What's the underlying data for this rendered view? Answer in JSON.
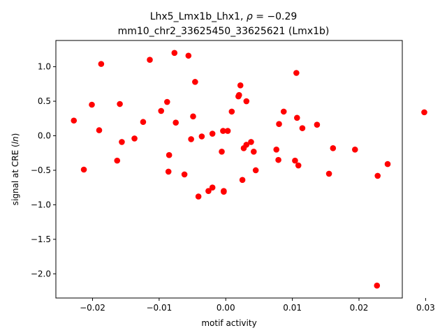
{
  "chart_data": {
    "type": "scatter",
    "title_line1_main": "Lhx5_Lmx1b_Lhx1, ",
    "title_line1_rho": "ρ",
    "title_line1_value": " = −0.29",
    "title_line2": "mm10_chr2_33625450_33625621 (Lmx1b)",
    "xlabel": "motif activity",
    "ylabel_prefix": "signal at CRE (",
    "ylabel_italic": "ln",
    "ylabel_suffix": ")",
    "xlim": [
      -0.0255,
      0.0265
    ],
    "ylim": [
      -2.35,
      1.38
    ],
    "xticks": [
      -0.02,
      -0.01,
      0.0,
      0.01,
      0.02,
      0.03
    ],
    "xtick_labels": [
      "−0.02",
      "−0.01",
      "0.00",
      "0.01",
      "0.02",
      "0.03"
    ],
    "yticks": [
      1.0,
      0.5,
      0.0,
      -0.5,
      -1.0,
      -1.5,
      -2.0
    ],
    "ytick_labels": [
      "1.0",
      "0.5",
      "0.0",
      "−0.5",
      "−1.0",
      "−1.5",
      "−2.0"
    ],
    "marker_color": "#ff0000",
    "points": [
      [
        -0.0228,
        0.22
      ],
      [
        -0.0213,
        -0.49
      ],
      [
        -0.0201,
        0.45
      ],
      [
        -0.019,
        0.08
      ],
      [
        -0.0187,
        1.04
      ],
      [
        -0.0163,
        -0.36
      ],
      [
        -0.0159,
        0.46
      ],
      [
        -0.0156,
        -0.09
      ],
      [
        -0.0137,
        -0.04
      ],
      [
        -0.0124,
        0.2
      ],
      [
        -0.0114,
        1.1
      ],
      [
        -0.0097,
        0.36
      ],
      [
        -0.0088,
        0.49
      ],
      [
        -0.0086,
        -0.52
      ],
      [
        -0.0085,
        -0.28
      ],
      [
        -0.0075,
        0.19
      ],
      [
        -0.0077,
        1.2
      ],
      [
        -0.0062,
        -0.56
      ],
      [
        -0.0056,
        1.16
      ],
      [
        -0.0052,
        -0.05
      ],
      [
        -0.0049,
        0.28
      ],
      [
        -0.0046,
        0.78
      ],
      [
        -0.0041,
        -0.88
      ],
      [
        -0.0036,
        -0.01
      ],
      [
        -0.0026,
        -0.8
      ],
      [
        -0.002,
        -0.75
      ],
      [
        -0.002,
        0.03
      ],
      [
        -0.0006,
        -0.23
      ],
      [
        -0.0004,
        0.07
      ],
      [
        -0.0003,
        -0.8
      ],
      [
        -0.0003,
        -0.81
      ],
      [
        0.0003,
        0.07
      ],
      [
        0.0009,
        0.35
      ],
      [
        0.0019,
        0.57
      ],
      [
        0.002,
        0.59
      ],
      [
        0.0022,
        0.73
      ],
      [
        0.0025,
        -0.64
      ],
      [
        0.0027,
        -0.18
      ],
      [
        0.0031,
        0.5
      ],
      [
        0.0031,
        -0.13
      ],
      [
        0.0038,
        -0.09
      ],
      [
        0.0042,
        -0.23
      ],
      [
        0.0045,
        -0.5
      ],
      [
        0.0076,
        -0.2
      ],
      [
        0.0079,
        -0.35
      ],
      [
        0.008,
        0.17
      ],
      [
        0.0087,
        0.35
      ],
      [
        0.0104,
        -0.36
      ],
      [
        0.0106,
        0.91
      ],
      [
        0.0107,
        0.26
      ],
      [
        0.0109,
        -0.43
      ],
      [
        0.0115,
        0.11
      ],
      [
        0.0137,
        0.16
      ],
      [
        0.0155,
        -0.55
      ],
      [
        0.0161,
        -0.18
      ],
      [
        0.0194,
        -0.2
      ],
      [
        0.0227,
        -2.17
      ],
      [
        0.0228,
        -0.58
      ],
      [
        0.0243,
        -0.41
      ],
      [
        0.0298,
        0.34
      ]
    ]
  }
}
